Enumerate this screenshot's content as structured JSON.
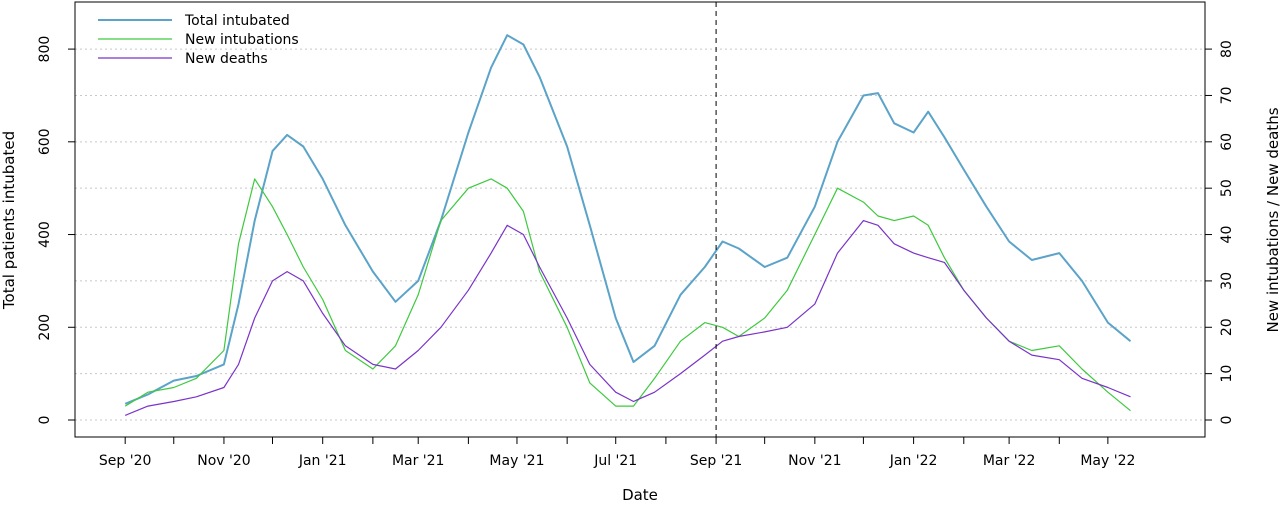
{
  "chart_data": {
    "type": "line",
    "xlabel": "Date",
    "ylabel_left": "Total patients intubated",
    "ylabel_right": "New intubations / New deaths",
    "x_range": [
      "2020-08-01",
      "2022-06-30"
    ],
    "ylim_left": [
      0,
      880
    ],
    "ylim_right": [
      0,
      88
    ],
    "left_ticks": [
      "0",
      "200",
      "400",
      "600",
      "800"
    ],
    "right_ticks": [
      "0",
      "10",
      "20",
      "30",
      "40",
      "50",
      "60",
      "70",
      "80"
    ],
    "x_tick_labels": [
      {
        "date": "2020-09-01",
        "label": "Sep '20"
      },
      {
        "date": "2020-11-01",
        "label": "Nov '20"
      },
      {
        "date": "2021-01-01",
        "label": "Jan '21"
      },
      {
        "date": "2021-03-01",
        "label": "Mar '21"
      },
      {
        "date": "2021-05-01",
        "label": "May '21"
      },
      {
        "date": "2021-07-01",
        "label": "Jul '21"
      },
      {
        "date": "2021-09-01",
        "label": "Sep '21"
      },
      {
        "date": "2021-11-01",
        "label": "Nov '21"
      },
      {
        "date": "2022-01-01",
        "label": "Jan '22"
      },
      {
        "date": "2022-03-01",
        "label": "Mar '22"
      },
      {
        "date": "2022-05-01",
        "label": "May '22"
      }
    ],
    "x_minor_ticks": [
      "2020-10-01",
      "2020-12-01",
      "2021-02-01",
      "2021-04-01",
      "2021-06-01",
      "2021-08-01",
      "2021-10-01",
      "2021-12-01",
      "2022-02-01",
      "2022-04-01"
    ],
    "vertical_reference_line": "2021-09-01",
    "grid": "horizontal dotted",
    "legend_position": "top-left",
    "series": [
      {
        "name": "Total intubated",
        "axis": "left",
        "color": "#5ba3c9",
        "points": [
          [
            "2020-09-01",
            35
          ],
          [
            "2020-09-15",
            55
          ],
          [
            "2020-10-01",
            85
          ],
          [
            "2020-10-15",
            95
          ],
          [
            "2020-11-01",
            120
          ],
          [
            "2020-11-10",
            250
          ],
          [
            "2020-11-20",
            430
          ],
          [
            "2020-12-01",
            580
          ],
          [
            "2020-12-10",
            615
          ],
          [
            "2020-12-20",
            590
          ],
          [
            "2021-01-01",
            520
          ],
          [
            "2021-01-15",
            420
          ],
          [
            "2021-02-01",
            320
          ],
          [
            "2021-02-15",
            255
          ],
          [
            "2021-03-01",
            300
          ],
          [
            "2021-03-15",
            430
          ],
          [
            "2021-04-01",
            620
          ],
          [
            "2021-04-15",
            760
          ],
          [
            "2021-04-25",
            830
          ],
          [
            "2021-05-05",
            810
          ],
          [
            "2021-05-15",
            740
          ],
          [
            "2021-06-01",
            590
          ],
          [
            "2021-06-15",
            420
          ],
          [
            "2021-07-01",
            220
          ],
          [
            "2021-07-12",
            125
          ],
          [
            "2021-07-25",
            160
          ],
          [
            "2021-08-10",
            270
          ],
          [
            "2021-08-25",
            330
          ],
          [
            "2021-09-05",
            385
          ],
          [
            "2021-09-15",
            370
          ],
          [
            "2021-10-01",
            330
          ],
          [
            "2021-10-15",
            350
          ],
          [
            "2021-11-01",
            460
          ],
          [
            "2021-11-15",
            600
          ],
          [
            "2021-12-01",
            700
          ],
          [
            "2021-12-10",
            705
          ],
          [
            "2021-12-20",
            640
          ],
          [
            "2022-01-01",
            620
          ],
          [
            "2022-01-10",
            665
          ],
          [
            "2022-01-20",
            610
          ],
          [
            "2022-02-01",
            540
          ],
          [
            "2022-02-15",
            460
          ],
          [
            "2022-03-01",
            385
          ],
          [
            "2022-03-15",
            345
          ],
          [
            "2022-04-01",
            360
          ],
          [
            "2022-04-15",
            300
          ],
          [
            "2022-05-01",
            210
          ],
          [
            "2022-05-15",
            170
          ]
        ]
      },
      {
        "name": "New intubations",
        "axis": "right",
        "color": "#3ec93e",
        "points": [
          [
            "2020-09-01",
            3
          ],
          [
            "2020-09-15",
            6
          ],
          [
            "2020-10-01",
            7
          ],
          [
            "2020-10-15",
            9
          ],
          [
            "2020-11-01",
            15
          ],
          [
            "2020-11-10",
            38
          ],
          [
            "2020-11-20",
            52
          ],
          [
            "2020-12-01",
            46
          ],
          [
            "2020-12-10",
            40
          ],
          [
            "2020-12-20",
            33
          ],
          [
            "2021-01-01",
            26
          ],
          [
            "2021-01-15",
            15
          ],
          [
            "2021-02-01",
            11
          ],
          [
            "2021-02-15",
            16
          ],
          [
            "2021-03-01",
            27
          ],
          [
            "2021-03-15",
            43
          ],
          [
            "2021-04-01",
            50
          ],
          [
            "2021-04-15",
            52
          ],
          [
            "2021-04-25",
            50
          ],
          [
            "2021-05-05",
            45
          ],
          [
            "2021-05-15",
            32
          ],
          [
            "2021-06-01",
            20
          ],
          [
            "2021-06-15",
            8
          ],
          [
            "2021-07-01",
            3
          ],
          [
            "2021-07-12",
            3
          ],
          [
            "2021-07-25",
            9
          ],
          [
            "2021-08-10",
            17
          ],
          [
            "2021-08-25",
            21
          ],
          [
            "2021-09-05",
            20
          ],
          [
            "2021-09-15",
            18
          ],
          [
            "2021-10-01",
            22
          ],
          [
            "2021-10-15",
            28
          ],
          [
            "2021-11-01",
            40
          ],
          [
            "2021-11-15",
            50
          ],
          [
            "2021-12-01",
            47
          ],
          [
            "2021-12-10",
            44
          ],
          [
            "2021-12-20",
            43
          ],
          [
            "2022-01-01",
            44
          ],
          [
            "2022-01-10",
            42
          ],
          [
            "2022-01-20",
            35
          ],
          [
            "2022-02-01",
            28
          ],
          [
            "2022-02-15",
            22
          ],
          [
            "2022-03-01",
            17
          ],
          [
            "2022-03-15",
            15
          ],
          [
            "2022-04-01",
            16
          ],
          [
            "2022-04-15",
            11
          ],
          [
            "2022-05-01",
            6
          ],
          [
            "2022-05-15",
            2
          ]
        ]
      },
      {
        "name": "New deaths",
        "axis": "right",
        "color": "#7a33c9",
        "points": [
          [
            "2020-09-01",
            1
          ],
          [
            "2020-09-15",
            3
          ],
          [
            "2020-10-01",
            4
          ],
          [
            "2020-10-15",
            5
          ],
          [
            "2020-11-01",
            7
          ],
          [
            "2020-11-10",
            12
          ],
          [
            "2020-11-20",
            22
          ],
          [
            "2020-12-01",
            30
          ],
          [
            "2020-12-10",
            32
          ],
          [
            "2020-12-20",
            30
          ],
          [
            "2021-01-01",
            23
          ],
          [
            "2021-01-15",
            16
          ],
          [
            "2021-02-01",
            12
          ],
          [
            "2021-02-15",
            11
          ],
          [
            "2021-03-01",
            15
          ],
          [
            "2021-03-15",
            20
          ],
          [
            "2021-04-01",
            28
          ],
          [
            "2021-04-15",
            36
          ],
          [
            "2021-04-25",
            42
          ],
          [
            "2021-05-05",
            40
          ],
          [
            "2021-05-15",
            33
          ],
          [
            "2021-06-01",
            22
          ],
          [
            "2021-06-15",
            12
          ],
          [
            "2021-07-01",
            6
          ],
          [
            "2021-07-12",
            4
          ],
          [
            "2021-07-25",
            6
          ],
          [
            "2021-08-10",
            10
          ],
          [
            "2021-08-25",
            14
          ],
          [
            "2021-09-05",
            17
          ],
          [
            "2021-09-15",
            18
          ],
          [
            "2021-10-01",
            19
          ],
          [
            "2021-10-15",
            20
          ],
          [
            "2021-11-01",
            25
          ],
          [
            "2021-11-15",
            36
          ],
          [
            "2021-12-01",
            43
          ],
          [
            "2021-12-10",
            42
          ],
          [
            "2021-12-20",
            38
          ],
          [
            "2022-01-01",
            36
          ],
          [
            "2022-01-10",
            35
          ],
          [
            "2022-01-20",
            34
          ],
          [
            "2022-02-01",
            28
          ],
          [
            "2022-02-15",
            22
          ],
          [
            "2022-03-01",
            17
          ],
          [
            "2022-03-15",
            14
          ],
          [
            "2022-04-01",
            13
          ],
          [
            "2022-04-15",
            9
          ],
          [
            "2022-05-01",
            7
          ],
          [
            "2022-05-15",
            5
          ]
        ]
      }
    ]
  }
}
